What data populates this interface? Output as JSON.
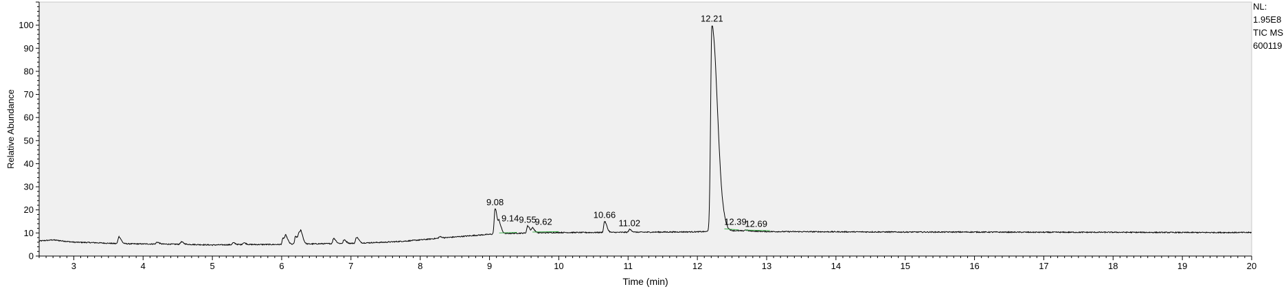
{
  "side_info": {
    "nl_label": "NL:",
    "nl_value": "1.95E8",
    "trace_label": "TIC  MS",
    "sample_id": "600119"
  },
  "colors": {
    "plot_background": "#f0f0f0",
    "trace": "#000000",
    "baseline_marks": "#3cb04a"
  },
  "chart_data": {
    "type": "line",
    "xlabel": "Time (min)",
    "ylabel": "Relative Abundance",
    "xlim": [
      2.5,
      20
    ],
    "ylim": [
      0,
      110
    ],
    "xticks": [
      3,
      4,
      5,
      6,
      7,
      8,
      9,
      10,
      11,
      12,
      13,
      14,
      15,
      16,
      17,
      18,
      19,
      20
    ],
    "yticks": [
      0,
      10,
      20,
      30,
      40,
      50,
      60,
      70,
      80,
      90,
      100
    ],
    "grid": false,
    "baseline_points": [
      [
        2.5,
        6.5
      ],
      [
        2.7,
        7.0
      ],
      [
        3.0,
        6.0
      ],
      [
        3.3,
        5.8
      ],
      [
        3.6,
        5.4
      ],
      [
        3.8,
        5.3
      ],
      [
        4.2,
        5.2
      ],
      [
        4.6,
        5.1
      ],
      [
        5.0,
        4.8
      ],
      [
        5.5,
        5.0
      ],
      [
        6.0,
        5.0
      ],
      [
        6.5,
        5.3
      ],
      [
        7.0,
        5.5
      ],
      [
        7.5,
        6.0
      ],
      [
        7.8,
        6.5
      ],
      [
        8.0,
        7.0
      ],
      [
        8.3,
        7.8
      ],
      [
        8.6,
        8.5
      ],
      [
        8.9,
        9.2
      ],
      [
        9.05,
        9.5
      ],
      [
        9.3,
        9.8
      ],
      [
        9.6,
        10.0
      ],
      [
        10.0,
        10.2
      ],
      [
        10.5,
        10.2
      ],
      [
        11.0,
        10.3
      ],
      [
        11.5,
        10.4
      ],
      [
        12.0,
        10.5
      ],
      [
        12.15,
        10.6
      ],
      [
        12.35,
        11.5
      ],
      [
        12.5,
        11.0
      ],
      [
        12.8,
        10.8
      ],
      [
        13.0,
        10.6
      ],
      [
        14.0,
        10.5
      ],
      [
        15.0,
        10.4
      ],
      [
        16.0,
        10.4
      ],
      [
        17.0,
        10.3
      ],
      [
        18.0,
        10.3
      ],
      [
        19.0,
        10.2
      ],
      [
        20.0,
        10.2
      ]
    ],
    "minor_peaks": [
      [
        3.65,
        3.0
      ],
      [
        4.2,
        0.8
      ],
      [
        4.55,
        1.0
      ],
      [
        5.3,
        0.8
      ],
      [
        5.45,
        0.8
      ],
      [
        6.02,
        2.7
      ],
      [
        6.06,
        2.8
      ],
      [
        6.2,
        3.4
      ],
      [
        6.25,
        4.0
      ],
      [
        6.28,
        3.2
      ],
      [
        6.75,
        2.2
      ],
      [
        6.9,
        1.5
      ],
      [
        7.08,
        2.6
      ],
      [
        8.28,
        0.6
      ]
    ],
    "labeled_peaks": [
      {
        "label": "9.08",
        "x": 9.08,
        "y": 20.5
      },
      {
        "label": "9.14",
        "x": 9.14,
        "y": 13.5
      },
      {
        "label": "9.55",
        "x": 9.55,
        "y": 13.0
      },
      {
        "label": "9.62",
        "x": 9.62,
        "y": 12.0
      },
      {
        "label": "10.66",
        "x": 10.66,
        "y": 15.0
      },
      {
        "label": "11.02",
        "x": 11.02,
        "y": 11.5
      },
      {
        "label": "12.21",
        "x": 12.21,
        "y": 100
      },
      {
        "label": "12.39",
        "x": 12.39,
        "y": 12.0
      },
      {
        "label": "12.69",
        "x": 12.69,
        "y": 11.2
      }
    ],
    "integration_baselines": [
      [
        9.14,
        9.4
      ],
      [
        9.62,
        10.0
      ],
      [
        12.39,
        12.6
      ],
      [
        12.69,
        13.05
      ]
    ]
  }
}
